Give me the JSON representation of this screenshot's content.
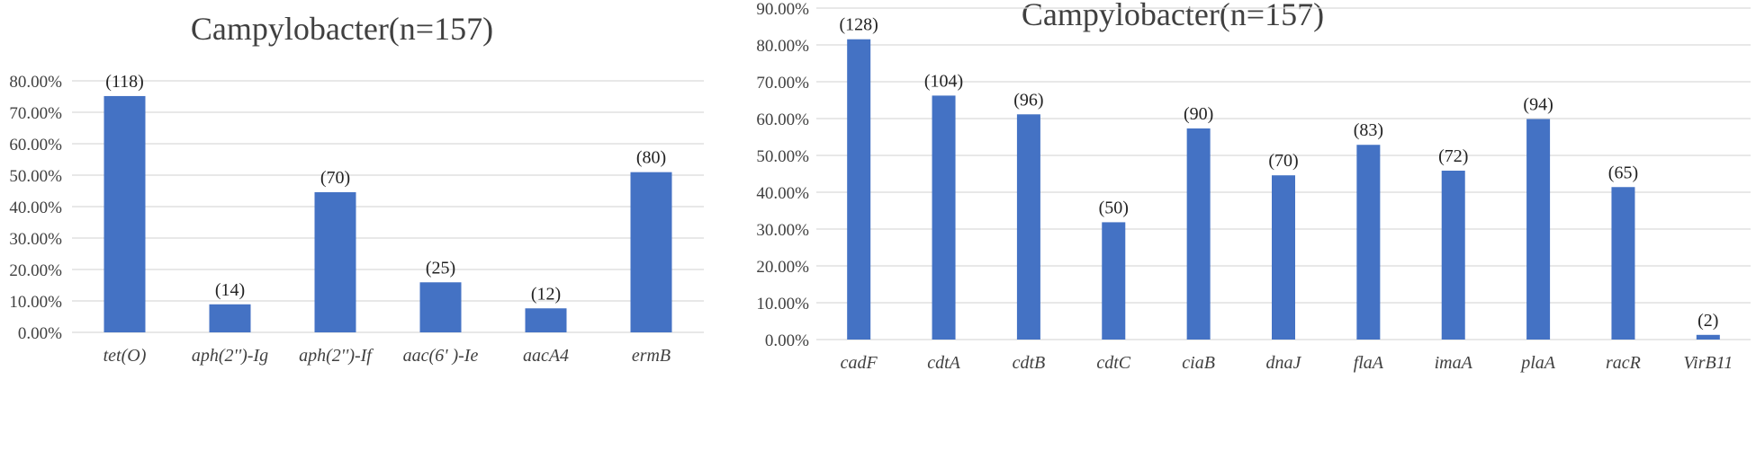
{
  "colors": {
    "bar": "#4472C4",
    "grid": "#D9D9D9",
    "text": "#404040"
  },
  "chart_data": [
    {
      "type": "bar",
      "title": "Campylobacter(n=157)",
      "xlabel": "",
      "ylabel": "",
      "ylim": [
        0,
        80
      ],
      "grid": true,
      "categories": [
        "tet(O)",
        "aph(2'')-Ig",
        "aph(2'')-If",
        "aac(6' )-Ie",
        "aacA4",
        "ermB"
      ],
      "yticks": [
        "0.00%",
        "10.00%",
        "20.00%",
        "30.00%",
        "40.00%",
        "50.00%",
        "60.00%",
        "70.00%",
        "80.00%"
      ],
      "values": [
        75.16,
        8.92,
        44.59,
        15.92,
        7.64,
        50.96
      ],
      "data_labels": [
        "(118)",
        "(14)",
        "(70)",
        "(25)",
        "(12)",
        "(80)"
      ]
    },
    {
      "type": "bar",
      "title": "Campylobacter(n=157)",
      "xlabel": "",
      "ylabel": "",
      "ylim": [
        0,
        90
      ],
      "grid": true,
      "categories": [
        "cadF",
        "cdtA",
        "cdtB",
        "cdtC",
        "ciaB",
        "dnaJ",
        "flaA",
        "imaA",
        "plaA",
        "racR",
        "VirB11"
      ],
      "yticks": [
        "0.00%",
        "10.00%",
        "20.00%",
        "30.00%",
        "40.00%",
        "50.00%",
        "60.00%",
        "70.00%",
        "80.00%",
        "90.00%"
      ],
      "values": [
        81.53,
        66.24,
        61.15,
        31.85,
        57.32,
        44.59,
        52.87,
        45.86,
        59.87,
        41.4,
        1.27
      ],
      "data_labels": [
        "(128)",
        "(104)",
        "(96)",
        "(50)",
        "(90)",
        "(70)",
        "(83)",
        "(72)",
        "(94)",
        "(65)",
        "(2)"
      ]
    }
  ]
}
